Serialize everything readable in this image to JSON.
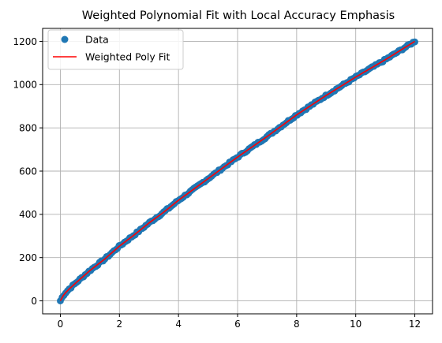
{
  "chart_data": {
    "type": "scatter",
    "title": "Weighted Polynomial Fit with Local Accuracy Emphasis",
    "xlabel": "",
    "ylabel": "",
    "xlim": [
      -0.6,
      12.6
    ],
    "ylim": [
      -60,
      1260
    ],
    "x_ticks": [
      0,
      2,
      4,
      6,
      8,
      10,
      12
    ],
    "y_ticks": [
      0,
      200,
      400,
      600,
      800,
      1000,
      1200
    ],
    "x_tick_labels": [
      "0",
      "2",
      "4",
      "6",
      "8",
      "10",
      "12"
    ],
    "y_tick_labels": [
      "0",
      "200",
      "400",
      "600",
      "800",
      "1000",
      "1200"
    ],
    "grid": true,
    "legend_position": "top-left",
    "series": [
      {
        "name": "Data",
        "kind": "scatter",
        "color": "#1f77b4",
        "x_range": [
          0,
          12
        ],
        "n_points": 200,
        "points": [
          [
            0.0,
            0
          ],
          [
            0.1,
            25
          ],
          [
            0.2,
            41
          ],
          [
            0.3,
            55
          ],
          [
            0.5,
            80
          ],
          [
            0.75,
            110
          ],
          [
            1.0,
            140
          ],
          [
            1.5,
            193
          ],
          [
            2.0,
            253
          ],
          [
            2.5,
            305
          ],
          [
            3.0,
            360
          ],
          [
            3.5,
            410
          ],
          [
            4.0,
            465
          ],
          [
            4.5,
            515
          ],
          [
            5.0,
            565
          ],
          [
            6.0,
            665
          ],
          [
            7.0,
            760
          ],
          [
            8.0,
            860
          ],
          [
            9.0,
            950
          ],
          [
            10.0,
            1035
          ],
          [
            11.0,
            1115
          ],
          [
            12.0,
            1200
          ]
        ]
      },
      {
        "name": "Weighted Poly Fit",
        "kind": "line",
        "color": "#ff0000"
      }
    ]
  }
}
